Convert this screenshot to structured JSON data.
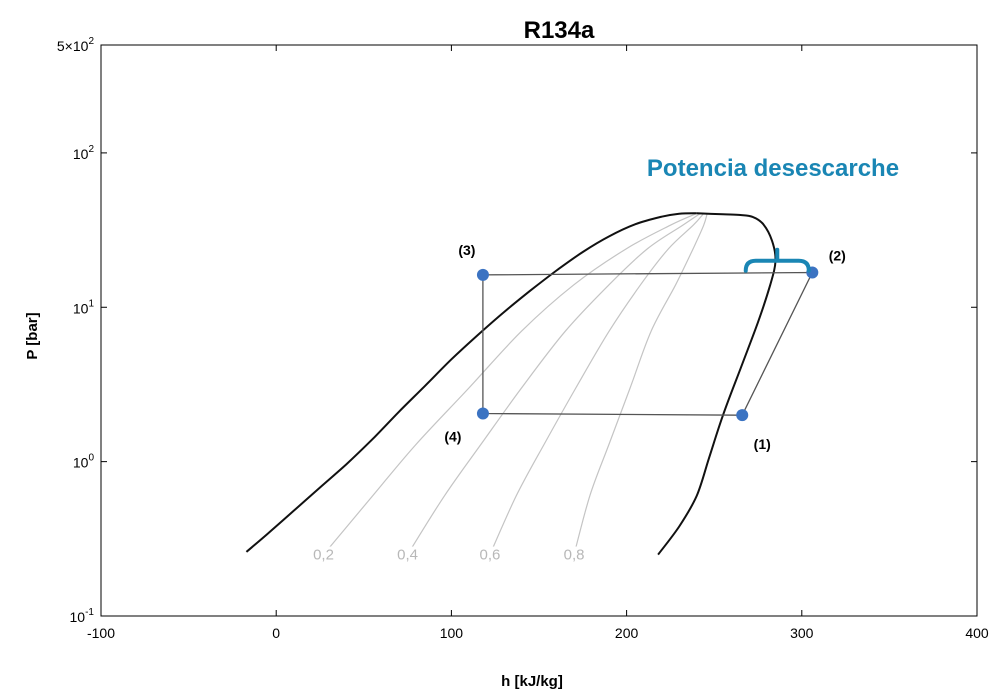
{
  "chart_data": {
    "type": "line",
    "title": "R134a",
    "xlabel": "h [kJ/kg]",
    "ylabel": "P [bar]",
    "x_scale": "linear",
    "y_scale": "log",
    "xlim": [
      -100,
      400
    ],
    "ylim": [
      0.1,
      500
    ],
    "x_ticks": [
      {
        "value": -100,
        "label": "-100"
      },
      {
        "value": 0,
        "label": "0"
      },
      {
        "value": 100,
        "label": "100"
      },
      {
        "value": 200,
        "label": "200"
      },
      {
        "value": 300,
        "label": "300"
      },
      {
        "value": 400,
        "label": "400"
      }
    ],
    "y_ticks": [
      {
        "value": 0.1,
        "base": "10",
        "exp": "-1"
      },
      {
        "value": 1,
        "base": "10",
        "exp": "0"
      },
      {
        "value": 10,
        "base": "10",
        "exp": "1"
      },
      {
        "value": 100,
        "base": "10",
        "exp": "2"
      },
      {
        "value": 500,
        "base": "5×10",
        "exp": "2"
      }
    ],
    "colors": {
      "dome": "#111111",
      "quality": "#c4c4c4",
      "cycle": "#555555",
      "points": "#3b73c2",
      "annotation": "#1a86b4"
    },
    "saturation_dome": {
      "liquid": [
        [
          -17,
          0.26
        ],
        [
          -5,
          0.34
        ],
        [
          10,
          0.48
        ],
        [
          25,
          0.68
        ],
        [
          40,
          0.96
        ],
        [
          55,
          1.4
        ],
        [
          70,
          2.1
        ],
        [
          85,
          3.1
        ],
        [
          100,
          4.6
        ],
        [
          115,
          6.6
        ],
        [
          130,
          9.3
        ],
        [
          145,
          12.8
        ],
        [
          160,
          17.3
        ],
        [
          175,
          22.8
        ],
        [
          190,
          28.8
        ],
        [
          205,
          34.5
        ],
        [
          220,
          38.6
        ],
        [
          230,
          40.4
        ],
        [
          240,
          40.7
        ]
      ],
      "vapor": [
        [
          240,
          40.7
        ],
        [
          255,
          40.0
        ],
        [
          265,
          39.6
        ],
        [
          272,
          38.5
        ],
        [
          278,
          34.5
        ],
        [
          283,
          27.0
        ],
        [
          285,
          20.0
        ],
        [
          282,
          14.0
        ],
        [
          275,
          8.0
        ],
        [
          265,
          4.0
        ],
        [
          255,
          2.0
        ],
        [
          247,
          1.05
        ],
        [
          240,
          0.6
        ],
        [
          230,
          0.38
        ],
        [
          218,
          0.25
        ]
      ]
    },
    "quality_lines": [
      {
        "label": "0,2",
        "points": [
          [
            27,
            0.25
          ],
          [
            55,
            0.6
          ],
          [
            80,
            1.3
          ],
          [
            110,
            3.0
          ],
          [
            140,
            7.0
          ],
          [
            170,
            14.0
          ],
          [
            200,
            24.0
          ],
          [
            225,
            34.0
          ],
          [
            240,
            40.5
          ]
        ]
      },
      {
        "label": "0,4",
        "points": [
          [
            75,
            0.25
          ],
          [
            96,
            0.6
          ],
          [
            117,
            1.3
          ],
          [
            140,
            3.0
          ],
          [
            165,
            7.0
          ],
          [
            190,
            14.0
          ],
          [
            212,
            24.0
          ],
          [
            232,
            34.0
          ],
          [
            242,
            40.5
          ]
        ]
      },
      {
        "label": "0,6",
        "points": [
          [
            122,
            0.25
          ],
          [
            137,
            0.6
          ],
          [
            153,
            1.3
          ],
          [
            171,
            3.0
          ],
          [
            190,
            7.0
          ],
          [
            208,
            14.0
          ],
          [
            224,
            24.0
          ],
          [
            238,
            34.0
          ],
          [
            244,
            40.5
          ]
        ]
      },
      {
        "label": "0,8",
        "points": [
          [
            170,
            0.25
          ],
          [
            179,
            0.6
          ],
          [
            190,
            1.3
          ],
          [
            202,
            3.0
          ],
          [
            214,
            7.0
          ],
          [
            228,
            14.0
          ],
          [
            238,
            24.0
          ],
          [
            244,
            34.0
          ],
          [
            246,
            40.5
          ]
        ]
      }
    ],
    "cycle": {
      "points": [
        {
          "label": "(1)",
          "h": 266,
          "p": 2.0
        },
        {
          "label": "(2)",
          "h": 306,
          "p": 16.8
        },
        {
          "label": "(3)",
          "h": 118,
          "p": 16.2
        },
        {
          "label": "(4)",
          "h": 118,
          "p": 2.05
        }
      ],
      "path_order": [
        0,
        1,
        2,
        3,
        0
      ]
    },
    "annotation": {
      "text": "Potencia desescarche",
      "bracket_h": [
        268,
        304
      ],
      "bracket_p": 20.0
    }
  }
}
